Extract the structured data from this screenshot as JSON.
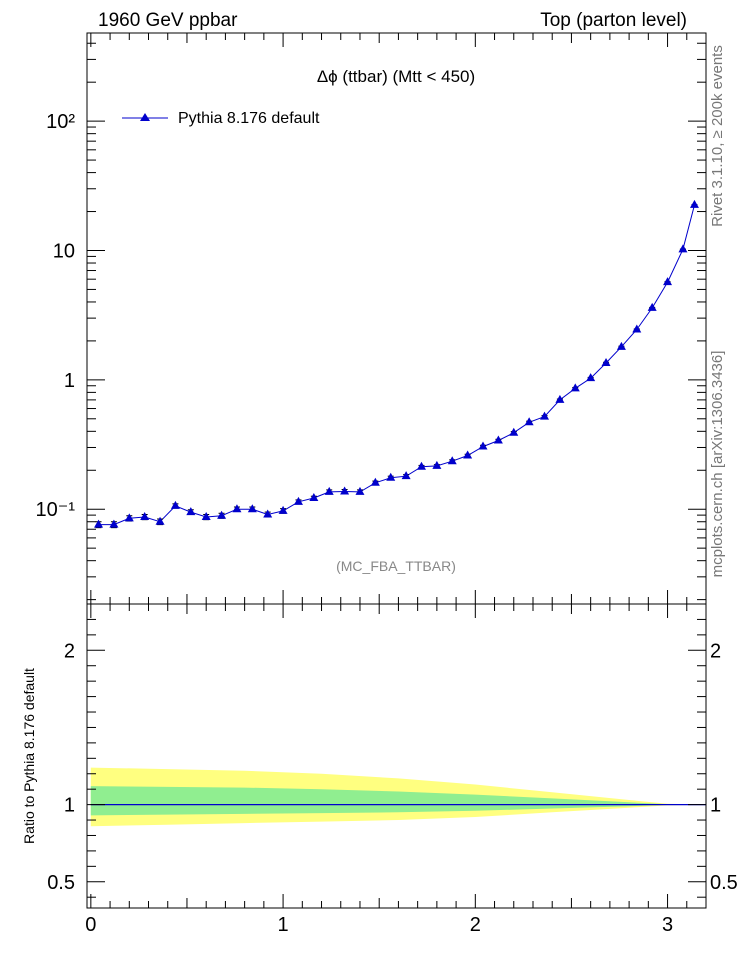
{
  "header": {
    "left": "1960 GeV ppbar",
    "right": "Top (parton level)"
  },
  "side_labels": {
    "upper": "Rivet 3.1.10, ≥ 200k events",
    "lower": "mcplots.cern.ch [arXiv:1306.3436]"
  },
  "chart_data": [
    {
      "type": "line",
      "title": "Δϕ (ttbar) (Mtt < 450)",
      "analysis_tag": "(MC_FBA_TTBAR)",
      "y_scale": "log",
      "xlim": [
        -0.02,
        3.2
      ],
      "ylim": [
        0.0185,
        480
      ],
      "y_tick_labels": [
        "10⁻¹",
        "1",
        "10",
        "10²"
      ],
      "legend": {
        "placement": "top-left",
        "entries": [
          "Pythia 8.176 default"
        ]
      },
      "series": [
        {
          "name": "Pythia 8.176 default",
          "color": "#0000cc",
          "marker": "triangle",
          "x": [
            0.04,
            0.12,
            0.2,
            0.28,
            0.36,
            0.44,
            0.52,
            0.6,
            0.68,
            0.76,
            0.84,
            0.92,
            1.0,
            1.08,
            1.16,
            1.24,
            1.32,
            1.4,
            1.48,
            1.56,
            1.64,
            1.72,
            1.8,
            1.88,
            1.96,
            2.04,
            2.12,
            2.2,
            2.28,
            2.36,
            2.44,
            2.52,
            2.6,
            2.68,
            2.76,
            2.84,
            2.92,
            3.0,
            3.08,
            3.14
          ],
          "y": [
            0.076,
            0.076,
            0.085,
            0.087,
            0.08,
            0.106,
            0.095,
            0.087,
            0.089,
            0.1,
            0.1,
            0.091,
            0.097,
            0.114,
            0.122,
            0.136,
            0.137,
            0.136,
            0.16,
            0.175,
            0.18,
            0.213,
            0.216,
            0.235,
            0.26,
            0.305,
            0.34,
            0.39,
            0.47,
            0.52,
            0.7,
            0.86,
            1.03,
            1.35,
            1.8,
            2.45,
            3.6,
            5.7,
            10.2,
            22.5
          ],
          "yerr": [
            0.004,
            0.004,
            0.004,
            0.004,
            0.004,
            0.004,
            0.004,
            0.004,
            0.004,
            0.004,
            0.004,
            0.004,
            0.004,
            0.004,
            0.004,
            0.005,
            0.005,
            0.005,
            0.005,
            0.005,
            0.005,
            0.005,
            0.005,
            0.006,
            0.006,
            0.007,
            0.007,
            0.008,
            0.009,
            0.009,
            0.011,
            0.013,
            0.014,
            0.017,
            0.02,
            0.025,
            0.03,
            0.04,
            0.06,
            0.1
          ]
        }
      ]
    },
    {
      "type": "area",
      "ylabel": "Ratio to Pythia 8.176 default",
      "y_scale": "linear",
      "xlim": [
        -0.02,
        3.2
      ],
      "ylim": [
        0.33,
        2.3
      ],
      "x_ticks": [
        0,
        1,
        2,
        3
      ],
      "y_ticks": [
        0.5,
        1,
        2
      ],
      "bands": [
        {
          "color": "#ffff80",
          "x": [
            0.0,
            0.4,
            0.8,
            1.2,
            1.6,
            2.0,
            2.4,
            2.8,
            3.0,
            3.2
          ],
          "lo": [
            0.86,
            0.87,
            0.88,
            0.89,
            0.9,
            0.92,
            0.95,
            0.98,
            0.995,
            1.0
          ],
          "hi": [
            1.24,
            1.23,
            1.22,
            1.2,
            1.17,
            1.13,
            1.08,
            1.03,
            1.005,
            1.0
          ]
        },
        {
          "color": "#90ee90",
          "x": [
            0.0,
            0.4,
            0.8,
            1.2,
            1.6,
            2.0,
            2.4,
            2.8,
            3.0,
            3.2
          ],
          "lo": [
            0.93,
            0.935,
            0.94,
            0.945,
            0.95,
            0.96,
            0.975,
            0.99,
            0.998,
            1.0
          ],
          "hi": [
            1.12,
            1.115,
            1.11,
            1.1,
            1.085,
            1.065,
            1.04,
            1.015,
            1.002,
            1.0
          ]
        }
      ],
      "reference_line": {
        "y": 1,
        "color": "#0000cc"
      }
    }
  ]
}
